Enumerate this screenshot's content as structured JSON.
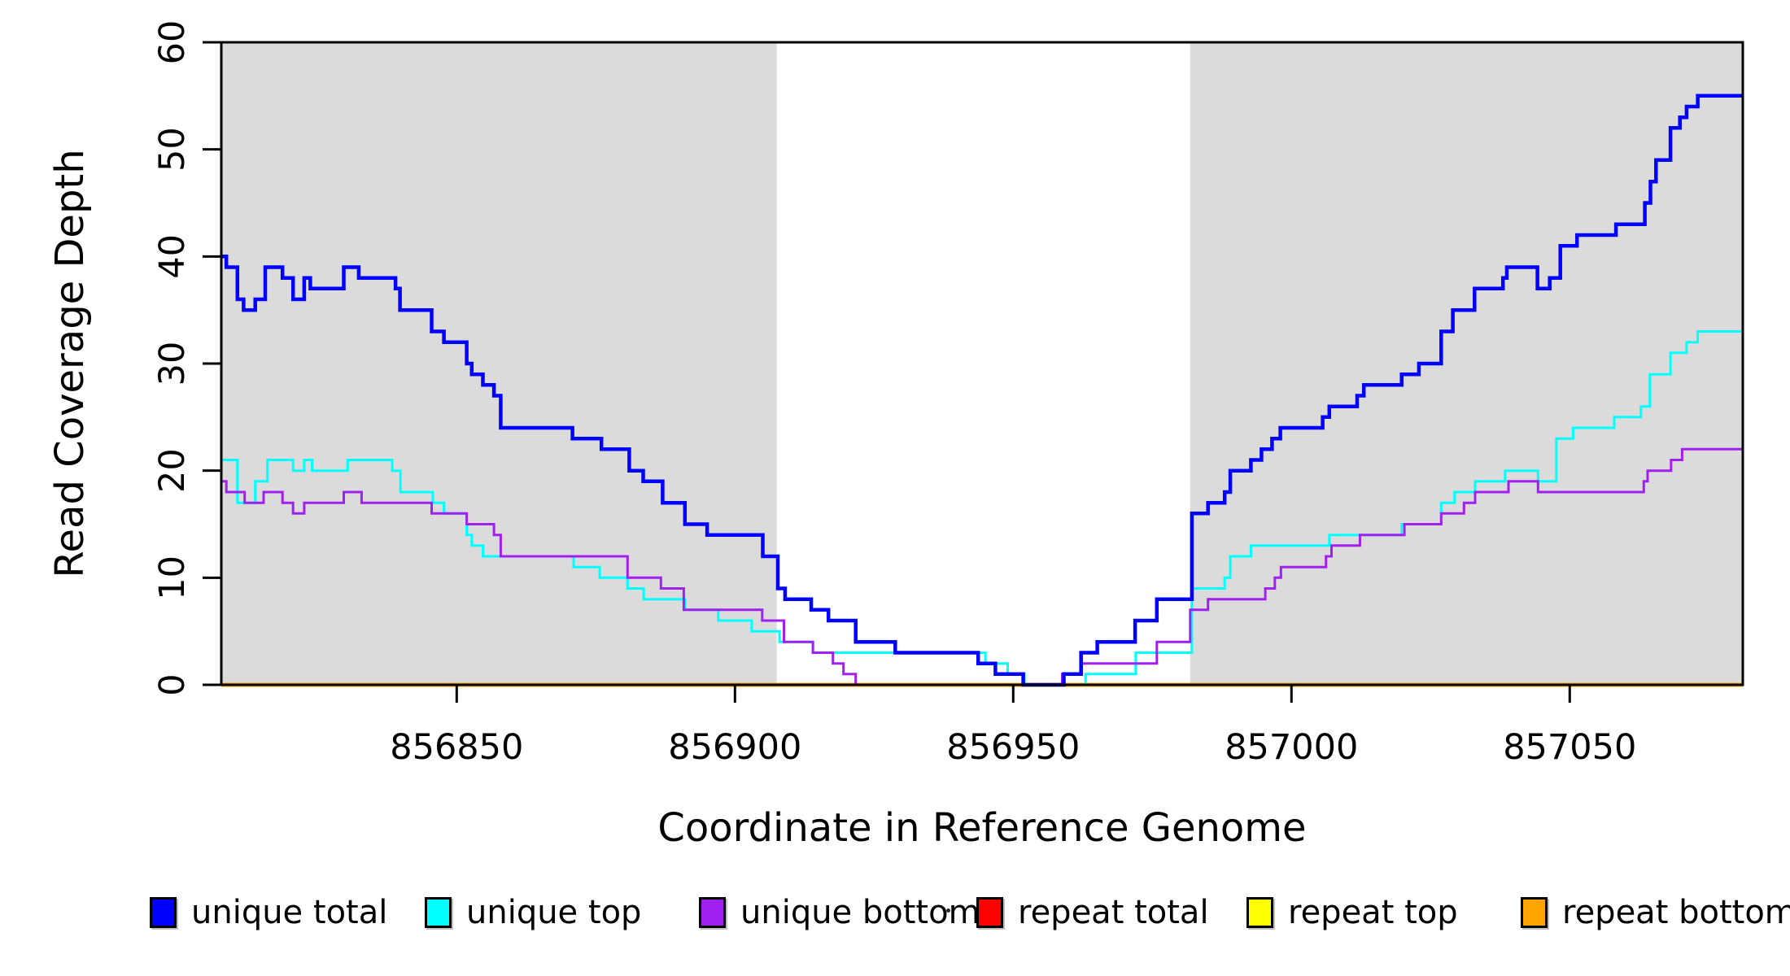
{
  "figure": {
    "background": "#FFFFFF",
    "shade_color": "#DBDBDB",
    "frame_color": "#000000"
  },
  "axes": {
    "x": {
      "label": "Coordinate in Reference Genome",
      "ticks": [
        856850,
        856900,
        856950,
        857000,
        857050
      ]
    },
    "y": {
      "label": "Read Coverage Depth",
      "ticks": [
        0,
        10,
        20,
        30,
        40,
        50,
        60
      ]
    }
  },
  "legend": {
    "items": [
      {
        "label": "unique total",
        "color": "#0000FF"
      },
      {
        "label": "unique top",
        "color": "#00FFFF"
      },
      {
        "label": "unique bottom",
        "color": "#A020F0"
      },
      {
        "label": "repeat total",
        "color": "#FF0000"
      },
      {
        "label": "repeat top",
        "color": "#FFFF00"
      },
      {
        "label": "repeat bottom",
        "color": "#FFA500"
      }
    ]
  },
  "chart_data": {
    "type": "line",
    "step": true,
    "title": "",
    "xlabel": "Coordinate in Reference Genome",
    "ylabel": "Read Coverage Depth",
    "xlim": [
      856807.7,
      857081.1
    ],
    "ylim": [
      0,
      60
    ],
    "grid": false,
    "legend_position": "bottom",
    "shaded_x_regions": [
      [
        856807.7,
        856907.5
      ],
      [
        856981.8,
        857081.1
      ]
    ],
    "series": [
      {
        "name": "repeat top",
        "color": "#FFFF00",
        "line_width": 3,
        "points": [
          [
            856807.7,
            0
          ],
          [
            857081.1,
            0
          ]
        ]
      },
      {
        "name": "repeat total",
        "color": "#FF0000",
        "line_width": 3,
        "points": [
          [
            856807.7,
            0
          ],
          [
            857081.1,
            0
          ]
        ]
      },
      {
        "name": "repeat bottom",
        "color": "#FFA500",
        "line_width": 5,
        "points": [
          [
            856807.7,
            0
          ],
          [
            857081.1,
            0
          ]
        ]
      },
      {
        "name": "unique top",
        "color": "#00FFFF",
        "line_width": 3,
        "points": [
          [
            856807.7,
            21
          ],
          [
            856810.6,
            17
          ],
          [
            856813.8,
            19
          ],
          [
            856816,
            21
          ],
          [
            856820.6,
            20
          ],
          [
            856822.6,
            21
          ],
          [
            856824,
            20
          ],
          [
            856830.4,
            21
          ],
          [
            856838.4,
            20
          ],
          [
            856839.9,
            18
          ],
          [
            856845.7,
            17
          ],
          [
            856847.7,
            16
          ],
          [
            856851.8,
            14
          ],
          [
            856852.7,
            13
          ],
          [
            856854.7,
            12
          ],
          [
            856871,
            11
          ],
          [
            856875.7,
            10
          ],
          [
            856880.7,
            9
          ],
          [
            856883.6,
            8
          ],
          [
            856891,
            7
          ],
          [
            856897,
            6
          ],
          [
            856903,
            5
          ],
          [
            856908,
            4
          ],
          [
            856914,
            3
          ],
          [
            856945,
            2
          ],
          [
            856949,
            1
          ],
          [
            856952,
            0
          ],
          [
            856963,
            1
          ],
          [
            856972,
            3
          ],
          [
            856982.1,
            9
          ],
          [
            856988,
            10
          ],
          [
            856989,
            12
          ],
          [
            856992.7,
            13
          ],
          [
            857006.8,
            14
          ],
          [
            857019.8,
            15
          ],
          [
            857026.9,
            17
          ],
          [
            857029.3,
            18
          ],
          [
            857033,
            19
          ],
          [
            857038.4,
            20
          ],
          [
            857044.3,
            19
          ],
          [
            857047.6,
            23
          ],
          [
            857050.6,
            24
          ],
          [
            857058,
            25
          ],
          [
            857062.8,
            26
          ],
          [
            857064.4,
            29
          ],
          [
            857068.1,
            31
          ],
          [
            857071,
            32
          ],
          [
            857073,
            33
          ],
          [
            857081.1,
            33
          ]
        ]
      },
      {
        "name": "unique bottom",
        "color": "#A020F0",
        "line_width": 3,
        "points": [
          [
            856807.7,
            19
          ],
          [
            856808.6,
            18
          ],
          [
            856811.9,
            17
          ],
          [
            856815.3,
            18
          ],
          [
            856818.7,
            17
          ],
          [
            856820.6,
            16
          ],
          [
            856822.6,
            17
          ],
          [
            856829.7,
            18
          ],
          [
            856832.9,
            17
          ],
          [
            856845.5,
            16
          ],
          [
            856851.8,
            15
          ],
          [
            856856.7,
            14
          ],
          [
            856857.9,
            12
          ],
          [
            856880.7,
            10
          ],
          [
            856886.7,
            9
          ],
          [
            856890.8,
            7
          ],
          [
            856904.9,
            6
          ],
          [
            856908.8,
            4
          ],
          [
            856914,
            3
          ],
          [
            856917.6,
            2
          ],
          [
            856919.5,
            1
          ],
          [
            856921.7,
            0
          ],
          [
            856958.8,
            1
          ],
          [
            856962.2,
            2
          ],
          [
            856975.8,
            4
          ],
          [
            856981.8,
            7
          ],
          [
            856985,
            8
          ],
          [
            856995.3,
            9
          ],
          [
            856997,
            10
          ],
          [
            856998.1,
            11
          ],
          [
            857006.2,
            12
          ],
          [
            857007.2,
            13
          ],
          [
            857012.3,
            14
          ],
          [
            857020.3,
            15
          ],
          [
            857026.9,
            16
          ],
          [
            857031,
            17
          ],
          [
            857033,
            18
          ],
          [
            857039,
            19
          ],
          [
            857044.3,
            18
          ],
          [
            857063.3,
            19
          ],
          [
            857064,
            20
          ],
          [
            857068.2,
            21
          ],
          [
            857070.2,
            22
          ],
          [
            857081.1,
            22
          ]
        ]
      },
      {
        "name": "unique total",
        "color": "#0000FF",
        "line_width": 4.5,
        "points": [
          [
            856807.7,
            40
          ],
          [
            856808.6,
            39
          ],
          [
            856810.6,
            36
          ],
          [
            856811.7,
            35
          ],
          [
            856813.8,
            36
          ],
          [
            856815.6,
            39
          ],
          [
            856818.7,
            38
          ],
          [
            856820.6,
            36
          ],
          [
            856822.6,
            38
          ],
          [
            856823.7,
            37
          ],
          [
            856829.7,
            39
          ],
          [
            856832.4,
            38
          ],
          [
            856839.0,
            37
          ],
          [
            856839.8,
            35
          ],
          [
            856845.5,
            33
          ],
          [
            856847.7,
            32
          ],
          [
            856851.8,
            30
          ],
          [
            856852.7,
            29
          ],
          [
            856854.7,
            28
          ],
          [
            856856.7,
            27
          ],
          [
            856857.9,
            24
          ],
          [
            856870.8,
            23
          ],
          [
            856876,
            22
          ],
          [
            856881,
            20
          ],
          [
            856883.5,
            19
          ],
          [
            856887,
            17
          ],
          [
            856891,
            15
          ],
          [
            856895,
            14
          ],
          [
            856905,
            12
          ],
          [
            856907.7,
            9
          ],
          [
            856909,
            8
          ],
          [
            856913.7,
            7
          ],
          [
            856916.8,
            6
          ],
          [
            856921.7,
            4
          ],
          [
            856928.8,
            3
          ],
          [
            856943.7,
            2
          ],
          [
            856946.8,
            1
          ],
          [
            856951.8,
            0
          ],
          [
            856959.1,
            1
          ],
          [
            856962.2,
            3
          ],
          [
            856965.1,
            4
          ],
          [
            856971.9,
            6
          ],
          [
            856975.8,
            8
          ],
          [
            856982.1,
            16
          ],
          [
            856985,
            17
          ],
          [
            856988,
            18
          ],
          [
            856989,
            20
          ],
          [
            856992.7,
            21
          ],
          [
            856994.6,
            22
          ],
          [
            856996.5,
            23
          ],
          [
            856998,
            24
          ],
          [
            857005.6,
            25
          ],
          [
            857006.8,
            26
          ],
          [
            857011.8,
            27
          ],
          [
            857013,
            28
          ],
          [
            857019.8,
            29
          ],
          [
            857022.9,
            30
          ],
          [
            857026.9,
            33
          ],
          [
            857029,
            35
          ],
          [
            857032.9,
            37
          ],
          [
            857038,
            38
          ],
          [
            857038.7,
            39
          ],
          [
            857044.2,
            37
          ],
          [
            857046.4,
            38
          ],
          [
            857048.3,
            41
          ],
          [
            857051.3,
            42
          ],
          [
            857058.3,
            43
          ],
          [
            857063.5,
            45
          ],
          [
            857064.5,
            47
          ],
          [
            857065.5,
            49
          ],
          [
            857068.1,
            52
          ],
          [
            857069.8,
            53
          ],
          [
            857071,
            54
          ],
          [
            857073,
            55
          ],
          [
            857081.1,
            55
          ]
        ]
      }
    ]
  }
}
